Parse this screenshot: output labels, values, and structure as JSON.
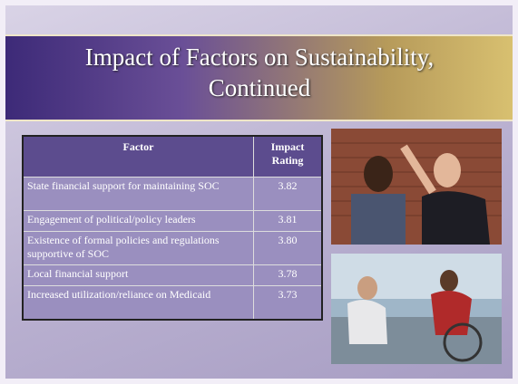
{
  "slide": {
    "title": "Impact of Factors on Sustainability, Continued",
    "table": {
      "headers": [
        "Factor",
        "Impact Rating"
      ],
      "rows": [
        [
          "State financial support for maintaining SOC",
          "3.82"
        ],
        [
          "Engagement of political/policy leaders",
          "3.81"
        ],
        [
          "Existence of formal policies and regulations supportive of SOC",
          "3.80"
        ],
        [
          "Local financial support",
          "3.78"
        ],
        [
          "Increased utilization/reliance on Medicaid",
          "3.73"
        ]
      ]
    }
  }
}
